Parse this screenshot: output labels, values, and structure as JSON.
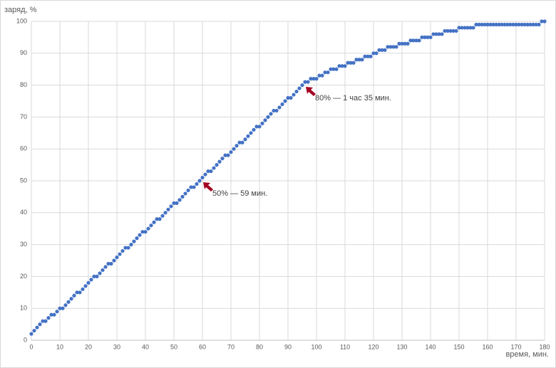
{
  "chart_data": {
    "type": "scatter",
    "y_label": "заряд, %",
    "x_label": "время, мин.",
    "color": "#4472c4",
    "grid": true,
    "x": [
      0,
      1,
      2,
      3,
      4,
      5,
      6,
      7,
      8,
      9,
      10,
      11,
      12,
      13,
      14,
      15,
      16,
      17,
      18,
      19,
      20,
      21,
      22,
      23,
      24,
      25,
      26,
      27,
      28,
      29,
      30,
      31,
      32,
      33,
      34,
      35,
      36,
      37,
      38,
      39,
      40,
      41,
      42,
      43,
      44,
      45,
      46,
      47,
      48,
      49,
      50,
      51,
      52,
      53,
      54,
      55,
      56,
      57,
      58,
      59,
      60,
      61,
      62,
      63,
      64,
      65,
      66,
      67,
      68,
      69,
      70,
      71,
      72,
      73,
      74,
      75,
      76,
      77,
      78,
      79,
      80,
      81,
      82,
      83,
      84,
      85,
      86,
      87,
      88,
      89,
      90,
      91,
      92,
      93,
      94,
      95,
      96,
      97,
      98,
      99,
      100,
      101,
      102,
      103,
      104,
      105,
      106,
      107,
      108,
      109,
      110,
      111,
      112,
      113,
      114,
      115,
      116,
      117,
      118,
      119,
      120,
      121,
      122,
      123,
      124,
      125,
      126,
      127,
      128,
      129,
      130,
      131,
      132,
      133,
      134,
      135,
      136,
      137,
      138,
      139,
      140,
      141,
      142,
      143,
      144,
      145,
      146,
      147,
      148,
      149,
      150,
      151,
      152,
      153,
      154,
      155,
      156,
      157,
      158,
      159,
      160,
      161,
      162,
      163,
      164,
      165,
      166,
      167,
      168,
      169,
      170,
      171,
      172,
      173,
      174,
      175,
      176,
      177,
      178,
      179,
      180
    ],
    "values": [
      2,
      3,
      4,
      5,
      6,
      6,
      7,
      8,
      8,
      9,
      10,
      10,
      11,
      12,
      13,
      14,
      15,
      15,
      16,
      17,
      18,
      19,
      20,
      20,
      21,
      22,
      23,
      24,
      24,
      25,
      26,
      27,
      28,
      29,
      29,
      30,
      31,
      32,
      33,
      34,
      34,
      35,
      36,
      37,
      38,
      38,
      39,
      40,
      41,
      42,
      43,
      43,
      44,
      45,
      46,
      47,
      48,
      48,
      49,
      50,
      51,
      52,
      53,
      53,
      54,
      55,
      56,
      57,
      58,
      58,
      59,
      60,
      61,
      62,
      62,
      63,
      64,
      65,
      66,
      67,
      67,
      68,
      69,
      70,
      71,
      72,
      72,
      73,
      74,
      75,
      76,
      76,
      77,
      78,
      79,
      80,
      81,
      81,
      82,
      82,
      82,
      83,
      83,
      84,
      84,
      85,
      85,
      85,
      86,
      86,
      86,
      87,
      87,
      87,
      88,
      88,
      88,
      89,
      89,
      89,
      90,
      90,
      91,
      91,
      91,
      92,
      92,
      92,
      92,
      93,
      93,
      93,
      93,
      94,
      94,
      94,
      94,
      95,
      95,
      95,
      95,
      96,
      96,
      96,
      96,
      97,
      97,
      97,
      97,
      97,
      98,
      98,
      98,
      98,
      98,
      98,
      99,
      99,
      99,
      99,
      99,
      99,
      99,
      99,
      99,
      99,
      99,
      99,
      99,
      99,
      99,
      99,
      99,
      99,
      99,
      99,
      99,
      99,
      99,
      100,
      100
    ],
    "xlim": [
      0,
      180
    ],
    "ylim": [
      0,
      100
    ],
    "xticks": [
      0,
      10,
      20,
      30,
      40,
      50,
      60,
      70,
      80,
      90,
      100,
      110,
      120,
      130,
      140,
      150,
      160,
      170,
      180
    ],
    "yticks": [
      0,
      10,
      20,
      30,
      40,
      50,
      60,
      70,
      80,
      90,
      100
    ],
    "annotations": [
      "50% — 59 мин.",
      "80% — 1 час 35 мин."
    ]
  }
}
